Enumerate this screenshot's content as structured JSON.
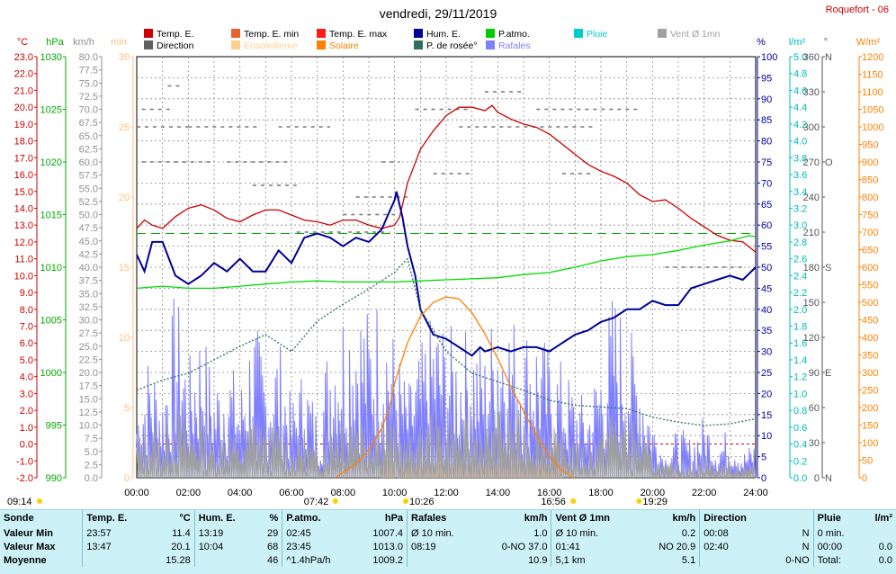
{
  "title": "vendredi, 29/11/2019",
  "station": "Roquefort - 06",
  "units": {
    "temp": "°C",
    "press": "hPa",
    "wind": "km/h",
    "min": "min",
    "hum": "%",
    "rain": "l/m²",
    "dir": "°",
    "solar": "W/m²"
  },
  "legend": [
    {
      "label": "Temp. E.",
      "color": "#cc0000"
    },
    {
      "label": "Temp. E. min",
      "color": "#e86030"
    },
    {
      "label": "Temp. E. max",
      "color": "#ff1a1a"
    },
    {
      "label": "Hum. E.",
      "color": "#000099"
    },
    {
      "label": "P.atmo.",
      "color": "#00cc00"
    },
    {
      "label": "Pluie",
      "color": "#00cccc"
    },
    {
      "label": "Vent Ø 1mn",
      "color": "#a0a0a0"
    },
    {
      "label": "Direction",
      "color": "#606060"
    },
    {
      "label": "Ensoleilleme",
      "color": "#ffd090"
    },
    {
      "label": "Solaire",
      "color": "#ff8000"
    },
    {
      "label": "P. de rosée°",
      "color": "#2e7060"
    },
    {
      "label": "Rafales",
      "color": "#8080ff"
    }
  ],
  "chart_data": {
    "type": "line",
    "x_ticks": [
      "00:00",
      "02:00",
      "04:00",
      "06:00",
      "08:00",
      "10:00",
      "12:00",
      "14:00",
      "16:00",
      "18:00",
      "20:00",
      "22:00",
      "24:00"
    ],
    "axes": {
      "temp": {
        "min": -2.0,
        "max": 23.0,
        "step": 1.0,
        "color": "#cc0000"
      },
      "press": {
        "min": 990,
        "max": 1030,
        "step": 5,
        "color": "#00aa00"
      },
      "wind": {
        "min": 0.0,
        "max": 80.0,
        "step": 2.5,
        "color": "#909090"
      },
      "minutes": {
        "min": 0,
        "max": 30,
        "step": 5,
        "color": "#ffc080"
      },
      "hum": {
        "min": 0,
        "max": 100,
        "step": 5,
        "color": "#000099"
      },
      "rain": {
        "min": 0.0,
        "max": 5.0,
        "step": 0.2,
        "color": "#00bbbb"
      },
      "dir": {
        "min": 0,
        "max": 360,
        "step": 30,
        "color": "#555555"
      },
      "solar": {
        "min": 0,
        "max": 1200,
        "step": 50,
        "color": "#ff8000"
      }
    },
    "dir_labels": {
      "0": "N",
      "90": "E",
      "180": "S",
      "270": "O",
      "360": "N"
    },
    "series": [
      {
        "name": "Temp. E.",
        "axis": "temp",
        "color": "#cc0000",
        "x": [
          0,
          0.3,
          0.6,
          1,
          1.5,
          2,
          2.5,
          3,
          3.5,
          4,
          4.5,
          5,
          5.5,
          6,
          6.5,
          7,
          7.5,
          8,
          8.5,
          9,
          9.5,
          10,
          10.2,
          10.5,
          11,
          11.5,
          12,
          12.5,
          13,
          13.5,
          13.78,
          14,
          14.5,
          15,
          15.5,
          16,
          16.5,
          17,
          17.5,
          18,
          18.5,
          19,
          19.5,
          20,
          20.5,
          21,
          21.5,
          22,
          22.5,
          23,
          23.5,
          24
        ],
        "y": [
          12.8,
          13.3,
          13.0,
          12.8,
          13.5,
          14.0,
          14.2,
          13.9,
          13.4,
          13.2,
          13.6,
          13.9,
          13.9,
          13.6,
          13.3,
          13.2,
          13.0,
          13.3,
          13.3,
          13.0,
          12.8,
          13.0,
          13.5,
          15.5,
          17.5,
          18.6,
          19.5,
          20.0,
          20.0,
          19.8,
          20.1,
          19.7,
          19.3,
          19.0,
          18.8,
          18.4,
          17.8,
          17.2,
          16.6,
          16.2,
          15.9,
          15.5,
          14.8,
          14.4,
          14.5,
          14.0,
          13.4,
          12.9,
          12.4,
          12.1,
          12.0,
          11.4
        ]
      },
      {
        "name": "Hum. E.",
        "axis": "hum",
        "color": "#000099",
        "x": [
          0,
          0.3,
          0.6,
          1,
          1.5,
          2,
          2.5,
          3,
          3.5,
          4,
          4.5,
          5,
          5.5,
          6,
          6.5,
          7,
          7.5,
          8,
          8.5,
          9,
          9.5,
          10,
          10.07,
          10.3,
          10.5,
          10.8,
          11,
          11.5,
          12,
          12.5,
          13,
          13.32,
          13.5,
          14,
          14.5,
          15,
          15.5,
          16,
          16.5,
          17,
          17.5,
          18,
          18.5,
          19,
          19.5,
          20,
          20.5,
          21,
          21.5,
          22,
          22.5,
          23,
          23.5,
          24
        ],
        "y": [
          53,
          49,
          56,
          56,
          48,
          46,
          48,
          51,
          49,
          52,
          49,
          49,
          54,
          51,
          57,
          58,
          57,
          55,
          57,
          56,
          59,
          66,
          68,
          62,
          55,
          48,
          40,
          34,
          33,
          31,
          29,
          31,
          30,
          31,
          30,
          31,
          31,
          30,
          32,
          34,
          35,
          37,
          38,
          40,
          40,
          42,
          41,
          41,
          45,
          46,
          47,
          48,
          47,
          50
        ]
      },
      {
        "name": "P.atmo.",
        "axis": "press",
        "color": "#00dd00",
        "x": [
          0,
          1,
          2,
          3,
          4,
          5,
          6,
          7,
          8,
          9,
          10,
          11,
          12,
          13,
          14,
          15,
          16,
          17,
          18,
          19,
          20,
          21,
          22,
          23,
          23.75,
          24
        ],
        "y": [
          1008.0,
          1008.2,
          1008.0,
          1008.0,
          1008.2,
          1008.4,
          1008.6,
          1008.7,
          1008.6,
          1008.6,
          1008.6,
          1008.7,
          1008.8,
          1008.9,
          1009.0,
          1009.3,
          1009.5,
          1010.0,
          1010.6,
          1011.0,
          1011.2,
          1011.6,
          1012.1,
          1012.5,
          1013.0,
          1012.9
        ]
      },
      {
        "name": "P. de rosée°",
        "axis": "temp",
        "color": "#2e7060",
        "dash": "2,2",
        "x": [
          0,
          1,
          2,
          3,
          4,
          5,
          6,
          7,
          8,
          9,
          10,
          10.5,
          11,
          12,
          13,
          14,
          15,
          16,
          17,
          18,
          19,
          20,
          21,
          22,
          23,
          24
        ],
        "y": [
          3.2,
          3.8,
          4.2,
          5.0,
          5.8,
          6.5,
          5.5,
          7.3,
          8.3,
          9.2,
          10.2,
          11.0,
          8.0,
          5.5,
          4.2,
          3.7,
          3.2,
          2.6,
          2.3,
          2.2,
          2.1,
          1.6,
          1.3,
          1.1,
          1.2,
          1.5
        ]
      },
      {
        "name": "Solaire",
        "axis": "solar",
        "color": "#ff8000",
        "x": [
          7.7,
          8,
          8.5,
          9,
          9.5,
          9.8,
          10,
          10.3,
          10.5,
          11,
          11.5,
          12,
          12.5,
          13,
          13.5,
          14,
          14.5,
          15,
          15.5,
          16,
          16.5,
          16.93
        ],
        "y": [
          0,
          15,
          40,
          80,
          140,
          200,
          270,
          340,
          385,
          460,
          500,
          515,
          510,
          470,
          410,
          340,
          260,
          190,
          120,
          60,
          20,
          0
        ]
      },
      {
        "name": "Ensoleilleme",
        "axis": "minutes",
        "color": "#ffd090",
        "style": "bar",
        "x": [
          9.5,
          10.0,
          10.1,
          10.5,
          11,
          11.5,
          12,
          12.5,
          13,
          13.5,
          14,
          14.5,
          15,
          15.5,
          16,
          16.5
        ],
        "y": [
          1.2,
          0,
          1.0,
          1.0,
          1.0,
          1.0,
          1.0,
          1.0,
          1.0,
          1.0,
          1.0,
          1.0,
          1.0,
          1.0,
          1.0,
          0.5
        ]
      },
      {
        "name": "Rafales",
        "axis": "wind",
        "color": "#8080ff",
        "style": "spiky",
        "x": [
          0,
          0.5,
          1,
          1.5,
          2,
          2.5,
          3,
          3.5,
          4,
          4.5,
          5,
          5.5,
          6,
          6.5,
          7,
          7.5,
          8,
          8.5,
          9,
          9.5,
          10,
          10.5,
          11,
          11.5,
          12,
          12.5,
          13,
          13.5,
          14,
          14.5,
          15,
          15.5,
          16,
          16.5,
          17,
          17.5,
          18,
          18.5,
          19,
          19.5,
          20,
          20.5,
          21,
          21.5,
          22,
          22.5,
          23,
          23.5,
          24
        ],
        "y": [
          12,
          20,
          14,
          30,
          18,
          25,
          15,
          20,
          14,
          26,
          18,
          22,
          12,
          18,
          10,
          24,
          28,
          30,
          26,
          30,
          22,
          14,
          20,
          26,
          24,
          22,
          24,
          20,
          30,
          26,
          24,
          24,
          20,
          18,
          14,
          12,
          20,
          30,
          24,
          20,
          10,
          4,
          8,
          6,
          10,
          6,
          8,
          4,
          6
        ]
      },
      {
        "name": "Vent Ø 1mn",
        "axis": "wind",
        "color": "#a0a0a0",
        "style": "spiky",
        "x": [
          0,
          0.5,
          1,
          1.5,
          2,
          2.5,
          3,
          3.5,
          4,
          4.5,
          5,
          5.5,
          6,
          6.5,
          7,
          7.5,
          8,
          8.5,
          9,
          9.5,
          10,
          10.5,
          11,
          11.5,
          12,
          12.5,
          13,
          13.5,
          14,
          14.5,
          15,
          15.5,
          16,
          16.5,
          17,
          17.5,
          18,
          18.5,
          19,
          19.5,
          20,
          20.5,
          21,
          21.5,
          22,
          22.5,
          23,
          23.5,
          24
        ],
        "y": [
          6,
          9,
          7,
          12,
          8,
          10,
          6,
          9,
          5,
          11,
          8,
          9,
          5,
          8,
          4,
          10,
          12,
          13,
          10,
          12,
          8,
          6,
          8,
          11,
          10,
          9,
          10,
          8,
          12,
          11,
          10,
          10,
          8,
          7,
          6,
          5,
          8,
          12,
          10,
          8,
          4,
          2,
          3,
          2,
          4,
          2,
          3,
          2,
          2
        ]
      }
    ],
    "rain_curve": {
      "name": "Pluie",
      "axis": "rain",
      "color": "#00cccc"
    },
    "direction_dashes": [
      {
        "x0": 1.2,
        "x1": 1.8,
        "deg": 335
      },
      {
        "x0": 0.2,
        "x1": 1.4,
        "deg": 315
      },
      {
        "x0": 0.0,
        "x1": 2.0,
        "deg": 300
      },
      {
        "x0": 2.0,
        "x1": 4.8,
        "deg": 300
      },
      {
        "x0": 5.5,
        "x1": 7.5,
        "deg": 300
      },
      {
        "x0": 0.2,
        "x1": 3.0,
        "deg": 270
      },
      {
        "x0": 3.5,
        "x1": 6.0,
        "deg": 270
      },
      {
        "x0": 4.5,
        "x1": 6.2,
        "deg": 250
      },
      {
        "x0": 9.5,
        "x1": 10.2,
        "deg": 270
      },
      {
        "x0": 10.8,
        "x1": 13.0,
        "deg": 315
      },
      {
        "x0": 12.5,
        "x1": 17.8,
        "deg": 300
      },
      {
        "x0": 15.5,
        "x1": 19.5,
        "deg": 315
      },
      {
        "x0": 8.5,
        "x1": 10.5,
        "deg": 240
      },
      {
        "x0": 11.5,
        "x1": 13.0,
        "deg": 260
      },
      {
        "x0": 16.5,
        "x1": 17.6,
        "deg": 260
      },
      {
        "x0": 8.0,
        "x1": 10.0,
        "deg": 225
      },
      {
        "x0": 20.5,
        "x1": 23.6,
        "deg": 180
      },
      {
        "x0": 8.2,
        "x1": 9.8,
        "deg": 210
      },
      {
        "x0": 6.2,
        "x1": 8.0,
        "deg": 210
      },
      {
        "x0": 13.5,
        "x1": 15.0,
        "deg": 330
      }
    ],
    "reference_lines": [
      {
        "axis": "temp",
        "value": 0.0,
        "color": "#cc0000",
        "dash": "3,3"
      },
      {
        "axis": "temp",
        "value": 12.5,
        "color": "#00aa00",
        "dash": "10,6"
      }
    ],
    "markers": [
      {
        "label": "09:14",
        "x": -0.5,
        "type": "sunrise-left"
      },
      {
        "label": "07:42",
        "x": 7.7
      },
      {
        "label": "10:26",
        "x": 10.43
      },
      {
        "label": "16:56",
        "x": 16.93
      },
      {
        "label": "19:29",
        "x": 19.48
      }
    ]
  },
  "stats": {
    "headers": [
      {
        "label": "Sonde",
        "unit": ""
      },
      {
        "label": "Temp. E.",
        "unit": "°C"
      },
      {
        "label": "Hum. E.",
        "unit": "%"
      },
      {
        "label": "P.atmo.",
        "unit": "hPa"
      },
      {
        "label": "Rafales",
        "unit": "km/h"
      },
      {
        "label": "Vent Ø 1mn",
        "unit": "km/h"
      },
      {
        "label": "Direction",
        "unit": ""
      },
      {
        "label": "Pluie",
        "unit": "l/m²"
      }
    ],
    "rows": [
      {
        "label": "Valeur Min",
        "cells": [
          [
            "23:57",
            "11.4"
          ],
          [
            "13:19",
            "29"
          ],
          [
            "02:45",
            "1007.4"
          ],
          [
            "Ø 10 min.",
            "1.0"
          ],
          [
            "Ø 10 min.",
            "0.2"
          ],
          [
            "00:08",
            "N"
          ],
          [
            "0 min.",
            ""
          ]
        ]
      },
      {
        "label": "Valeur Max",
        "cells": [
          [
            "13:47",
            "20.1"
          ],
          [
            "10:04",
            "68"
          ],
          [
            "23:45",
            "1013.0"
          ],
          [
            "08:19",
            "0-NO 37.0"
          ],
          [
            "01:41",
            "NO 20.9"
          ],
          [
            "02:40",
            "N"
          ],
          [
            "00:00",
            "0.0"
          ]
        ]
      },
      {
        "label": "Moyenne",
        "cells": [
          [
            "",
            "15.28"
          ],
          [
            "",
            "46"
          ],
          [
            "^1.4hPa/h",
            "1009.2"
          ],
          [
            "",
            "10.9"
          ],
          [
            "5,1 km",
            "5.1"
          ],
          [
            "",
            "0-NO"
          ],
          [
            "Total:",
            "0.0"
          ]
        ]
      }
    ]
  }
}
